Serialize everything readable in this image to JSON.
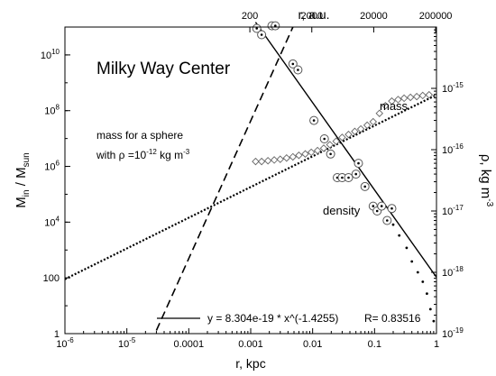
{
  "chart_data": {
    "type": "scatter",
    "title": "Milky Way Center",
    "xlabel": "r, kpc",
    "x2label": "r, a.u.",
    "ylabel_left": "M_in / M_sun",
    "ylabel_right": "ρ, kg m^-3",
    "x_scale": "log",
    "xlim": [
      1e-06,
      1
    ],
    "y_left_scale": "log",
    "y_left_lim": [
      1,
      100000000000
    ],
    "y_right_scale": "log",
    "y_right_lim": [
      1e-19,
      1e-14
    ],
    "grid": false,
    "bottom_ticks": [
      {
        "v": 1e-06,
        "base": "10",
        "exp": "-6"
      },
      {
        "v": 1e-05,
        "base": "10",
        "exp": "-5"
      },
      {
        "v": 0.0001,
        "label": "0.0001"
      },
      {
        "v": 0.001,
        "label": "0.001"
      },
      {
        "v": 0.01,
        "label": "0.01"
      },
      {
        "v": 0.1,
        "label": "0.1"
      },
      {
        "v": 1,
        "label": "1"
      }
    ],
    "top_ticks": [
      {
        "v": 0.00096963,
        "label": "200"
      },
      {
        "v": 0.0096963,
        "label": "2000"
      },
      {
        "v": 0.096963,
        "label": "20000"
      },
      {
        "v": 0.96963,
        "label": "200000"
      }
    ],
    "left_ticks": [
      {
        "v": 1,
        "label": "1"
      },
      {
        "v": 100,
        "label": "100"
      },
      {
        "v": 10000,
        "base": "10",
        "exp": "4"
      },
      {
        "v": 1000000,
        "base": "10",
        "exp": "6"
      },
      {
        "v": 100000000,
        "base": "10",
        "exp": "8"
      },
      {
        "v": 10000000000,
        "base": "10",
        "exp": "10"
      }
    ],
    "right_ticks": [
      {
        "v": 1e-19,
        "base": "10",
        "exp": "-19"
      },
      {
        "v": 1e-18,
        "base": "10",
        "exp": "-18"
      },
      {
        "v": 1e-17,
        "base": "10",
        "exp": "-17"
      },
      {
        "v": 1e-16,
        "base": "10",
        "exp": "-16"
      },
      {
        "v": 1e-15,
        "base": "10",
        "exp": "-15"
      }
    ],
    "annotations": {
      "sphere_line1": "mass for a sphere",
      "sphere_line2_prefix": "with ρ =10",
      "sphere_exp": "-12",
      "sphere_unit": " kg m",
      "sphere_unit_exp": "-3",
      "mass_label": "mass",
      "density_label": "density"
    },
    "fit_legend": {
      "equation": "y = 8.304e-19 * x^(-1.4255)",
      "r_value": "R= 0.83516"
    },
    "series": [
      {
        "name": "density",
        "axis": "right",
        "marker": "circled-dot",
        "x": [
          0.00125,
          0.0015,
          0.0022,
          0.0025,
          0.0048,
          0.0058,
          0.0105,
          0.0155,
          0.0195,
          0.025,
          0.03,
          0.038,
          0.05,
          0.055,
          0.07,
          0.095,
          0.11,
          0.13,
          0.16,
          0.19
        ],
        "y": [
          9.5e-15,
          7.5e-15,
          1.05e-14,
          1.05e-14,
          2.5e-15,
          2e-15,
          3e-16,
          1.5e-16,
          8.5e-17,
          3.5e-17,
          3.5e-17,
          3.5e-17,
          4e-17,
          6e-17,
          2.5e-17,
          1.2e-17,
          1e-17,
          1.2e-17,
          7e-18,
          1.1e-17
        ]
      },
      {
        "name": "density",
        "axis": "right",
        "marker": "dot",
        "x": [
          0.2,
          0.25,
          0.33,
          0.4,
          0.5,
          0.6,
          0.7,
          0.8,
          0.9
        ],
        "y": [
          6e-18,
          4e-18,
          2.5e-18,
          1.5e-18,
          1e-18,
          7e-19,
          4.5e-19,
          2.5e-19,
          1.6e-19
        ]
      },
      {
        "name": "mass",
        "axis": "left",
        "marker": "diamond",
        "x": [
          0.0012,
          0.0015,
          0.0019,
          0.0024,
          0.003,
          0.0038,
          0.0048,
          0.006,
          0.0076,
          0.0095,
          0.012,
          0.0151,
          0.019,
          0.024,
          0.03,
          0.038,
          0.048,
          0.06,
          0.076,
          0.095,
          0.12,
          0.15,
          0.19,
          0.24,
          0.3,
          0.38,
          0.48,
          0.6,
          0.76
        ],
        "y": [
          1500000,
          1500000,
          1600000,
          1700000,
          1800000,
          2000000,
          2200000,
          2500000,
          2800000,
          3200000,
          3700000,
          4500000,
          6000000,
          8000000,
          11000000,
          14000000,
          18000000,
          22000000,
          30000000,
          40000000,
          80000000,
          150000000,
          220000000,
          250000000,
          280000000,
          300000000,
          320000000,
          350000000,
          370000000
        ]
      }
    ],
    "lines": [
      {
        "name": "mass for a sphere",
        "axis": "left",
        "style": "dashed",
        "x": [
          3e-05,
          0.0048
        ],
        "y": [
          1.3,
          100000000000
        ]
      },
      {
        "name": "mass",
        "axis": "left",
        "style": "dotted",
        "x": [
          1e-06,
          1
        ],
        "y": [
          90,
          370000000
        ]
      },
      {
        "name": "power-law fit",
        "axis": "right",
        "style": "solid",
        "x": [
          0.0012,
          1
        ],
        "y": [
          1.2e-14,
          8.304e-19
        ]
      }
    ]
  }
}
